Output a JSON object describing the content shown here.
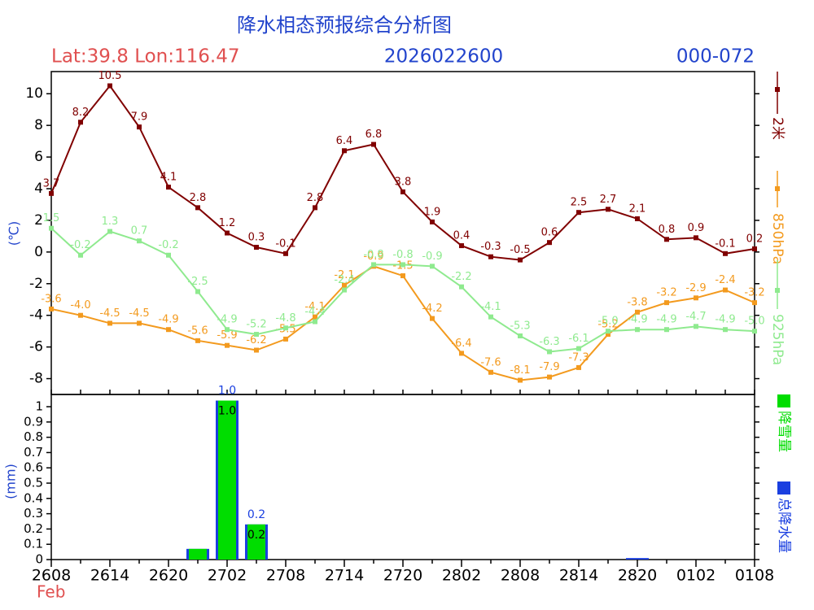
{
  "chart_data": [
    {
      "type": "line",
      "title": "降水相态预报综合分析图",
      "location": "Lat:39.8 Lon:116.47",
      "init_time": "2026022600",
      "forecast_range": "000-072",
      "ylabel": "(℃)",
      "ylim": [
        -9,
        11.4
      ],
      "yticks": [
        -8,
        -6,
        -4,
        -2,
        0,
        2,
        4,
        6,
        8,
        10
      ],
      "series": [
        {
          "name": "2米",
          "color": "#800000",
          "values": [
            3.7,
            8.2,
            10.5,
            7.9,
            4.1,
            2.8,
            1.2,
            0.3,
            -0.1,
            2.8,
            6.4,
            6.8,
            3.8,
            1.9,
            0.4,
            -0.3,
            -0.5,
            0.6,
            2.5,
            2.7,
            2.1,
            0.8,
            0.9,
            -0.1,
            0.2
          ],
          "value_labels": [
            "3.7",
            "8.2",
            "10.5",
            "7.9",
            "4.1",
            "2.8",
            "1.2",
            "0.3",
            "-0.1",
            "2.8",
            "6.4",
            "6.8",
            "3.8",
            "1.9",
            "0.4",
            "-0.3",
            "-0.5",
            "0.6",
            "2.5",
            "2.7",
            "2.1",
            "0.8",
            "0.9",
            "-0.1",
            "0.2"
          ]
        },
        {
          "name": "850hPa",
          "color": "#f39a1e",
          "values": [
            -3.6,
            -4.0,
            -4.5,
            -4.5,
            -4.9,
            -5.6,
            -5.9,
            -6.2,
            -5.5,
            -4.1,
            -2.1,
            -0.9,
            -1.5,
            -4.2,
            -6.4,
            -7.6,
            -8.1,
            -7.9,
            -7.3,
            -5.2,
            -3.8,
            -3.2,
            -2.9,
            -2.4,
            -3.2
          ],
          "value_labels": [
            "-3.6",
            "-4.0",
            "-4.5",
            "-4.5",
            "-4.9",
            "-5.6",
            "-5.9",
            "-6.2",
            "-5.5",
            "-4.1",
            "-2.1",
            "-0.9",
            "-1.5",
            "-4.2",
            "-6.4",
            "-7.6",
            "-8.1",
            "-7.9",
            "-7.3",
            "-5.2",
            "-3.8",
            "-3.2",
            "-2.9",
            "-2.4",
            "-3.2"
          ]
        },
        {
          "name": "925hPa",
          "color": "#8fea8f",
          "values": [
            1.5,
            -0.2,
            1.3,
            0.7,
            -0.2,
            -2.5,
            -4.9,
            -5.2,
            -4.8,
            -4.4,
            -2.4,
            -0.8,
            -0.8,
            -0.9,
            -2.2,
            -4.1,
            -5.3,
            -6.3,
            -6.1,
            -5.0,
            -4.9,
            -4.9,
            -4.7,
            -4.9,
            -5.0
          ],
          "value_labels": [
            "1.5",
            "-0.2",
            "1.3",
            "0.7",
            "-0.2",
            "-2.5",
            "-4.9",
            "-5.2",
            "-4.8",
            "-4.4",
            "-2.4",
            "-0.8",
            "-0.8",
            "-0.9",
            "-2.2",
            "-4.1",
            "-5.3",
            "-6.3",
            "-6.1",
            "-5.0",
            "-4.9",
            "-4.9",
            "-4.7",
            "-4.9",
            "-5.0"
          ]
        }
      ]
    },
    {
      "type": "bar",
      "ylabel": "(mm)",
      "xlabel": "Feb",
      "categories": [
        "2608",
        null,
        "2614",
        null,
        "2620",
        null,
        "2702",
        null,
        "2708",
        null,
        "2714",
        null,
        "2720",
        null,
        "2802",
        null,
        "2808",
        null,
        "2814",
        null,
        "2820",
        null,
        "0102",
        null,
        "0108"
      ],
      "ylim": [
        0,
        1.08
      ],
      "yticks": [
        0,
        0.1,
        0.2,
        0.3,
        0.4,
        0.5,
        0.6,
        0.7,
        0.8,
        0.9,
        1
      ],
      "series": [
        {
          "name": "总降水量",
          "color": "#1a3fe0",
          "values": [
            0,
            0,
            0,
            0,
            0,
            0.07,
            1.04,
            0.23,
            0,
            0,
            0,
            0,
            0,
            0,
            0,
            0,
            0,
            0,
            0,
            0,
            0.01,
            0,
            0,
            0,
            0
          ],
          "value_labels": [
            null,
            null,
            null,
            null,
            null,
            null,
            "1.0",
            "0.2",
            null,
            null,
            null,
            null,
            null,
            null,
            null,
            null,
            null,
            null,
            null,
            null,
            null,
            null,
            null,
            null,
            null
          ]
        },
        {
          "name": "降雪量",
          "color": "#00dd00",
          "values": [
            0,
            0,
            0,
            0,
            0,
            0.07,
            1.04,
            0.23,
            0,
            0,
            0,
            0,
            0,
            0,
            0,
            0,
            0,
            0,
            0,
            0,
            0,
            0,
            0,
            0,
            0
          ],
          "value_labels": [
            null,
            null,
            null,
            null,
            null,
            null,
            "1.0",
            "0.2",
            null,
            null,
            null,
            null,
            null,
            null,
            null,
            null,
            null,
            null,
            null,
            null,
            null,
            null,
            null,
            null,
            null
          ]
        }
      ]
    }
  ]
}
